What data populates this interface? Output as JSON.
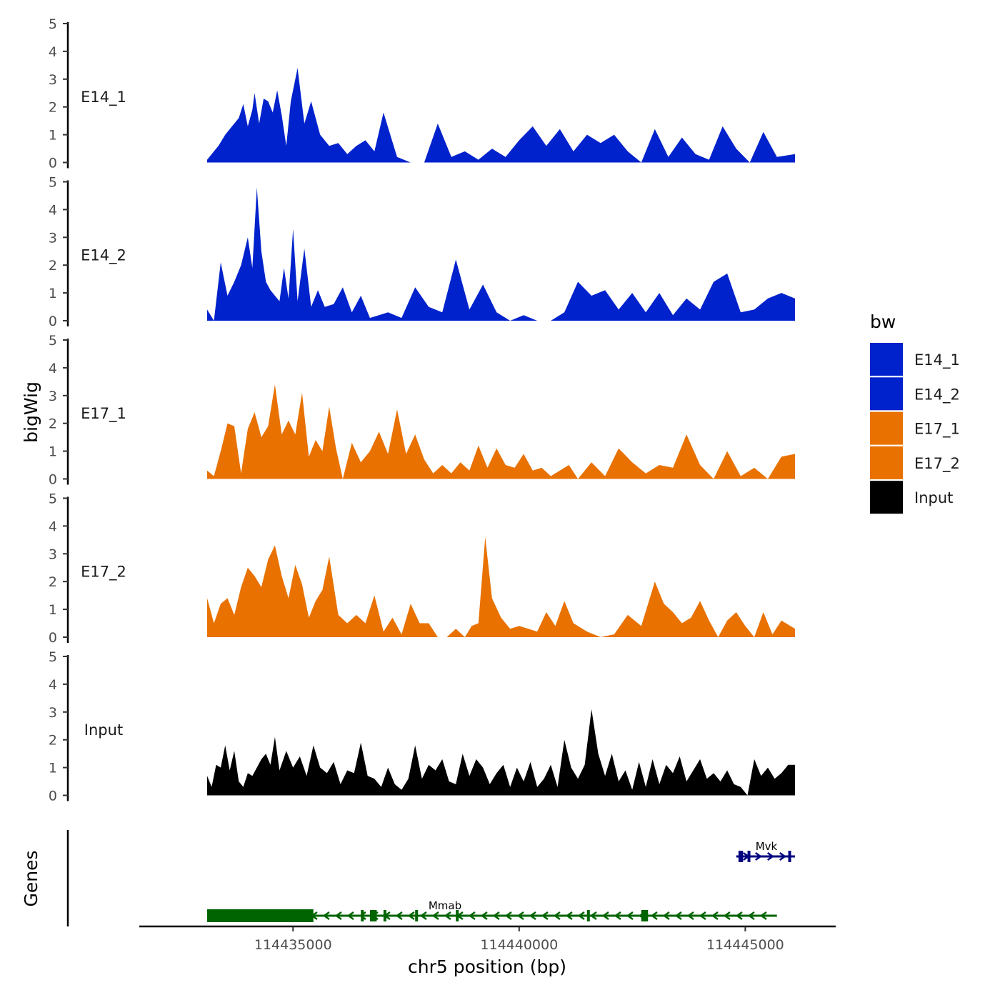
{
  "chart_data": {
    "type": "area",
    "title": "",
    "ylabel": "bigWig",
    "gene_track_label": "Genes",
    "xlabel": "chr5 position (bp)",
    "chromosome": "chr5",
    "xlim": [
      114431600,
      114447000
    ],
    "x_ticks": [
      114435000,
      114440000,
      114445000
    ],
    "x_tick_labels": [
      "114435000",
      "114440000",
      "114445000"
    ],
    "ylim": [
      0,
      5
    ],
    "y_ticks": [
      0,
      1,
      2,
      3,
      4,
      5
    ],
    "legend": {
      "title": "bw",
      "placement": "right",
      "entries": [
        "E14_1",
        "E14_2",
        "E17_1",
        "E17_2",
        "Input"
      ]
    },
    "colors": {
      "E14_1": "#0022cc",
      "E14_2": "#0022cc",
      "E17_1": "#e87100",
      "E17_2": "#e87100",
      "Input": "#000000",
      "Mmab": "#006400",
      "Mvk": "#000080"
    },
    "series": [
      {
        "name": "E14_1",
        "x": [
          114433100,
          114433250,
          114433350,
          114433500,
          114433650,
          114433800,
          114433900,
          114434000,
          114434100,
          114434150,
          114434250,
          114434350,
          114434450,
          114434550,
          114434650,
          114434750,
          114434850,
          114434950,
          114435100,
          114435250,
          114435400,
          114435600,
          114435800,
          114436000,
          114436200,
          114436400,
          114436600,
          114436800,
          114437000,
          114437300,
          114437600,
          114437900,
          114438200,
          114438500,
          114438800,
          114439100,
          114439400,
          114439700,
          114440000,
          114440300,
          114440600,
          114440900,
          114441200,
          114441500,
          114441800,
          114442100,
          114442400,
          114442700,
          114443000,
          114443300,
          114443600,
          114443900,
          114444200,
          114444500,
          114444800,
          114445100,
          114445400,
          114445700,
          114446100
        ],
        "values": [
          0.1,
          0.4,
          0.6,
          1.0,
          1.3,
          1.6,
          2.1,
          1.3,
          1.9,
          2.5,
          1.4,
          2.3,
          2.2,
          1.8,
          2.6,
          1.7,
          0.6,
          2.2,
          3.4,
          1.4,
          2.2,
          1.0,
          0.6,
          0.7,
          0.3,
          0.6,
          0.8,
          0.4,
          1.8,
          0.2,
          0.0,
          0.0,
          1.4,
          0.2,
          0.4,
          0.1,
          0.5,
          0.2,
          0.8,
          1.3,
          0.6,
          1.2,
          0.4,
          1.0,
          0.7,
          1.0,
          0.4,
          0.0,
          1.2,
          0.2,
          0.9,
          0.3,
          0.1,
          1.3,
          0.5,
          0.0,
          1.1,
          0.2,
          0.3
        ]
      },
      {
        "name": "E14_2",
        "x": [
          114433100,
          114433250,
          114433400,
          114433550,
          114433700,
          114433850,
          114434000,
          114434100,
          114434200,
          114434300,
          114434400,
          114434500,
          114434600,
          114434700,
          114434800,
          114434900,
          114435000,
          114435100,
          114435250,
          114435400,
          114435550,
          114435700,
          114435900,
          114436100,
          114436300,
          114436500,
          114436700,
          114436900,
          114437100,
          114437400,
          114437700,
          114438000,
          114438300,
          114438600,
          114438900,
          114439200,
          114439500,
          114439800,
          114440100,
          114440400,
          114440700,
          114441000,
          114441300,
          114441600,
          114441900,
          114442200,
          114442500,
          114442800,
          114443100,
          114443400,
          114443700,
          114444000,
          114444300,
          114444600,
          114444900,
          114445200,
          114445500,
          114445800,
          114446100
        ],
        "values": [
          0.4,
          0.0,
          2.1,
          0.9,
          1.4,
          2.0,
          3.0,
          1.9,
          4.8,
          2.5,
          1.4,
          1.1,
          0.9,
          0.7,
          1.9,
          0.8,
          3.3,
          0.7,
          2.6,
          0.5,
          1.1,
          0.5,
          0.6,
          1.2,
          0.3,
          0.9,
          0.1,
          0.2,
          0.3,
          0.1,
          1.2,
          0.5,
          0.3,
          2.2,
          0.4,
          1.3,
          0.3,
          0.0,
          0.2,
          0.0,
          0.0,
          0.3,
          1.4,
          0.9,
          1.1,
          0.4,
          1.0,
          0.3,
          1.0,
          0.2,
          0.8,
          0.4,
          1.4,
          1.7,
          0.3,
          0.4,
          0.8,
          1.0,
          0.8
        ]
      },
      {
        "name": "E17_1",
        "x": [
          114433100,
          114433250,
          114433400,
          114433550,
          114433700,
          114433850,
          114434000,
          114434150,
          114434300,
          114434450,
          114434600,
          114434750,
          114434900,
          114435050,
          114435200,
          114435350,
          114435500,
          114435650,
          114435800,
          114435950,
          114436100,
          114436300,
          114436500,
          114436700,
          114436900,
          114437100,
          114437300,
          114437500,
          114437700,
          114437900,
          114438100,
          114438300,
          114438500,
          114438700,
          114438900,
          114439100,
          114439300,
          114439500,
          114439700,
          114439900,
          114440100,
          114440300,
          114440500,
          114440700,
          114440900,
          114441100,
          114441300,
          114441600,
          114441900,
          114442200,
          114442500,
          114442800,
          114443100,
          114443400,
          114443700,
          114444000,
          114444300,
          114444600,
          114444900,
          114445200,
          114445500,
          114445800,
          114446100
        ],
        "values": [
          0.3,
          0.1,
          1.0,
          2.0,
          1.9,
          0.2,
          1.8,
          2.4,
          1.5,
          1.9,
          3.4,
          1.6,
          2.1,
          1.6,
          3.1,
          0.8,
          1.4,
          1.0,
          2.6,
          1.1,
          0.0,
          1.3,
          0.6,
          1.0,
          1.7,
          0.9,
          2.5,
          0.9,
          1.6,
          0.7,
          0.2,
          0.5,
          0.2,
          0.6,
          0.3,
          1.2,
          0.4,
          1.1,
          0.5,
          0.4,
          0.9,
          0.3,
          0.4,
          0.1,
          0.3,
          0.5,
          0.0,
          0.6,
          0.1,
          1.1,
          0.6,
          0.2,
          0.5,
          0.4,
          1.6,
          0.5,
          0.0,
          1.0,
          0.1,
          0.4,
          0.0,
          0.8,
          0.9
        ]
      },
      {
        "name": "E17_2",
        "x": [
          114433100,
          114433250,
          114433400,
          114433550,
          114433700,
          114433850,
          114434000,
          114434150,
          114434300,
          114434450,
          114434600,
          114434750,
          114434900,
          114435050,
          114435200,
          114435350,
          114435500,
          114435650,
          114435800,
          114436000,
          114436200,
          114436400,
          114436600,
          114436800,
          114437000,
          114437200,
          114437400,
          114437600,
          114437800,
          114438000,
          114438200,
          114438400,
          114438600,
          114438800,
          114438950,
          114439100,
          114439250,
          114439400,
          114439600,
          114439800,
          114440000,
          114440200,
          114440400,
          114440600,
          114440800,
          114441000,
          114441200,
          114441500,
          114441800,
          114442100,
          114442400,
          114442700,
          114443000,
          114443200,
          114443400,
          114443600,
          114443800,
          114444000,
          114444200,
          114444400,
          114444600,
          114444800,
          114445000,
          114445200,
          114445400,
          114445600,
          114445800,
          114446100
        ],
        "values": [
          1.4,
          0.5,
          1.2,
          1.4,
          0.8,
          1.8,
          2.5,
          2.2,
          1.8,
          2.8,
          3.3,
          2.2,
          1.4,
          2.6,
          1.9,
          0.7,
          1.3,
          1.7,
          2.9,
          0.8,
          0.5,
          0.8,
          0.5,
          1.5,
          0.2,
          0.7,
          0.1,
          1.2,
          0.5,
          0.5,
          0.0,
          0.0,
          0.3,
          0.0,
          0.4,
          0.5,
          3.6,
          1.4,
          0.7,
          0.3,
          0.4,
          0.3,
          0.2,
          0.9,
          0.4,
          1.3,
          0.5,
          0.2,
          0.0,
          0.1,
          0.8,
          0.4,
          2.0,
          1.2,
          0.9,
          0.5,
          0.7,
          1.3,
          0.6,
          0.0,
          0.6,
          0.9,
          0.4,
          0.0,
          0.9,
          0.1,
          0.6,
          0.3
        ]
      },
      {
        "name": "Input",
        "x": [
          114433100,
          114433200,
          114433300,
          114433400,
          114433500,
          114433600,
          114433700,
          114433800,
          114433900,
          114434000,
          114434100,
          114434200,
          114434300,
          114434400,
          114434500,
          114434600,
          114434700,
          114434850,
          114435000,
          114435150,
          114435300,
          114435450,
          114435600,
          114435750,
          114435900,
          114436050,
          114436200,
          114436350,
          114436500,
          114436650,
          114436800,
          114436950,
          114437100,
          114437250,
          114437400,
          114437550,
          114437700,
          114437850,
          114438000,
          114438150,
          114438300,
          114438450,
          114438600,
          114438750,
          114438900,
          114439050,
          114439200,
          114439350,
          114439500,
          114439650,
          114439800,
          114439950,
          114440100,
          114440250,
          114440400,
          114440550,
          114440700,
          114440850,
          114441000,
          114441150,
          114441300,
          114441450,
          114441600,
          114441750,
          114441900,
          114442050,
          114442200,
          114442350,
          114442500,
          114442650,
          114442800,
          114442950,
          114443100,
          114443250,
          114443400,
          114443550,
          114443700,
          114443850,
          114444000,
          114444150,
          114444300,
          114444450,
          114444600,
          114444750,
          114444900,
          114445050,
          114445200,
          114445350,
          114445500,
          114445650,
          114445800,
          114445950,
          114446100
        ],
        "values": [
          0.7,
          0.3,
          1.1,
          1.0,
          1.8,
          0.9,
          1.6,
          0.5,
          0.3,
          0.8,
          0.7,
          1.0,
          1.3,
          1.5,
          1.1,
          2.1,
          0.9,
          1.6,
          1.0,
          1.4,
          0.7,
          1.8,
          1.0,
          0.8,
          1.2,
          0.4,
          0.9,
          0.8,
          1.9,
          0.7,
          0.6,
          0.3,
          1.0,
          0.4,
          0.2,
          0.6,
          1.8,
          0.6,
          1.1,
          0.9,
          1.3,
          0.5,
          0.4,
          1.5,
          0.7,
          1.3,
          1.0,
          0.4,
          0.8,
          1.1,
          0.3,
          1.0,
          0.5,
          1.2,
          0.3,
          0.6,
          1.1,
          0.3,
          2.0,
          1.0,
          0.6,
          1.1,
          3.1,
          1.5,
          0.7,
          1.5,
          0.5,
          0.9,
          0.2,
          1.2,
          0.3,
          1.3,
          0.4,
          1.1,
          0.8,
          1.4,
          0.5,
          0.9,
          1.3,
          0.6,
          0.8,
          0.5,
          0.9,
          0.4,
          0.3,
          0.0,
          1.3,
          0.7,
          1.0,
          0.6,
          0.8,
          1.1,
          1.1
        ]
      }
    ],
    "genes": [
      {
        "name": "Mmab",
        "strand": "-",
        "start": 114433100,
        "end": 114445700,
        "exons": [
          [
            114433100,
            114435450
          ],
          [
            114434850,
            114435400
          ],
          [
            114436500,
            114436550
          ],
          [
            114436700,
            114436850
          ],
          [
            114437000,
            114437050
          ],
          [
            114437700,
            114437750
          ],
          [
            114438600,
            114438650
          ],
          [
            114441500,
            114441550
          ],
          [
            114442700,
            114442850
          ]
        ]
      },
      {
        "name": "Mvk",
        "strand": "+",
        "start": 114444800,
        "end": 114446100,
        "exons": [
          [
            114444850,
            114444950
          ],
          [
            114445050,
            114445100
          ],
          [
            114445950,
            114446000
          ]
        ]
      }
    ]
  }
}
